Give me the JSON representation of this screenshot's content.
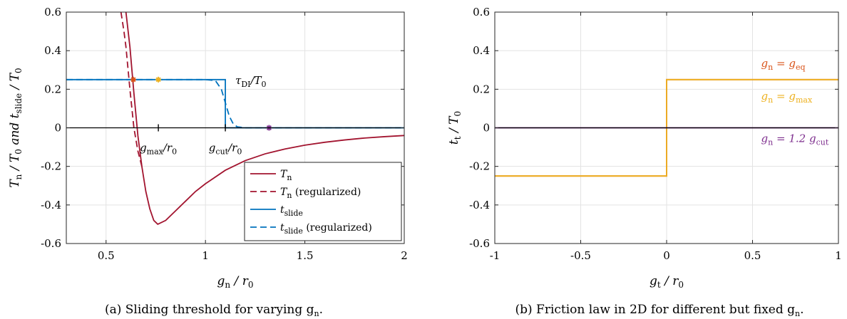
{
  "chart_data": [
    {
      "type": "line",
      "panel": "a",
      "caption": "(a) Sliding threshold for varying g",
      "caption_sub": "n",
      "caption_tail": ".",
      "xlabel": "g",
      "xlabel_sub": "n",
      "xlabel_tail": " / r",
      "xlabel_tail_sub": "0",
      "ylabel_parts": [
        "T",
        "n",
        " / T",
        "0",
        "   and   t",
        "slide",
        " / T",
        "0"
      ],
      "xlim": [
        0.3,
        2
      ],
      "ylim": [
        -0.6,
        0.6
      ],
      "xticks": [
        "0.5",
        "1",
        "1.5",
        "2"
      ],
      "xtick_values": [
        0.5,
        1,
        1.5,
        2
      ],
      "yticks": [
        "-0.6",
        "-0.4",
        "-0.2",
        "0",
        "0.2",
        "0.4",
        "0.6"
      ],
      "ytick_values": [
        -0.6,
        -0.4,
        -0.2,
        0,
        0.2,
        0.4,
        0.6
      ],
      "grid": true,
      "legend_position": "bottom-right",
      "colors": {
        "Tn": "#a2142f",
        "tslide": "#0072bd",
        "orange": "#d95319",
        "yellow": "#edb120",
        "purple": "#7e2f8e"
      },
      "series": [
        {
          "name": "T",
          "name_sub": "n",
          "style": "solid",
          "color": "#a2142f",
          "x": [
            0.6,
            0.62,
            0.64,
            0.66,
            0.68,
            0.7,
            0.72,
            0.74,
            0.76,
            0.8,
            0.85,
            0.9,
            0.95,
            1.0,
            1.1,
            1.2,
            1.3,
            1.4,
            1.5,
            1.6,
            1.7,
            1.8,
            1.9,
            2.0
          ],
          "y": [
            0.6,
            0.42,
            0.18,
            -0.04,
            -0.2,
            -0.33,
            -0.42,
            -0.48,
            -0.5,
            -0.48,
            -0.43,
            -0.38,
            -0.33,
            -0.29,
            -0.22,
            -0.17,
            -0.135,
            -0.11,
            -0.09,
            -0.075,
            -0.063,
            -0.053,
            -0.046,
            -0.04
          ]
        },
        {
          "name": "T",
          "name_sub": "n",
          "name_tail": "    (regularized)",
          "style": "dashed",
          "color": "#a2142f",
          "x": [
            0.575,
            0.59,
            0.6,
            0.62,
            0.64,
            0.66,
            0.68
          ],
          "y": [
            0.6,
            0.5,
            0.42,
            0.2,
            0.0,
            -0.12,
            -0.2
          ]
        },
        {
          "name": "t",
          "name_sub": "slide",
          "style": "solid",
          "color": "#0072bd",
          "x": [
            0.3,
            1.1,
            1.1,
            2.0
          ],
          "y": [
            0.25,
            0.25,
            0,
            0
          ]
        },
        {
          "name": "t",
          "name_sub": "slide",
          "name_tail": " (regularized)",
          "style": "dashed",
          "color": "#0072bd",
          "x": [
            0.3,
            1.0,
            1.05,
            1.08,
            1.1,
            1.12,
            1.14,
            1.16,
            1.2,
            2.0
          ],
          "y": [
            0.25,
            0.25,
            0.245,
            0.2,
            0.13,
            0.06,
            0.02,
            0.005,
            0,
            0
          ]
        }
      ],
      "markers": [
        {
          "x": 0.637,
          "y": 0.25,
          "color": "#d95319"
        },
        {
          "x": 0.763,
          "y": 0.25,
          "color": "#edb120"
        },
        {
          "x": 1.32,
          "y": 0,
          "color": "#7e2f8e"
        }
      ],
      "xaxis_markers": [
        {
          "x": 0.763,
          "label": "g",
          "label_sub": "max",
          "label_tail": "/r",
          "label_tail_sub": "0"
        },
        {
          "x": 1.1,
          "label": "g",
          "label_sub": "cut",
          "label_tail": "/r",
          "label_tail_sub": "0"
        }
      ],
      "annotation": {
        "x": 1.15,
        "y": 0.25,
        "text": "τ",
        "sub": "DI",
        "tail": "/T",
        "tail_sub": "0"
      }
    },
    {
      "type": "line",
      "panel": "b",
      "caption": "(b) Friction law in 2D for different but fixed g",
      "caption_sub": "n",
      "caption_tail": ".",
      "xlabel": "g",
      "xlabel_sub": "t",
      "xlabel_tail": " / r",
      "xlabel_tail_sub": "0",
      "ylabel": "t",
      "ylabel_sub": "t",
      "ylabel_tail": " / T",
      "ylabel_tail_sub": "0",
      "xlim": [
        -1,
        1
      ],
      "ylim": [
        -0.6,
        0.6
      ],
      "xticks": [
        "-1",
        "-0.5",
        "0",
        "0.5",
        "1"
      ],
      "xtick_values": [
        -1,
        -0.5,
        0,
        0.5,
        1
      ],
      "yticks": [
        "-0.6",
        "-0.4",
        "-0.2",
        "0",
        "0.2",
        "0.4",
        "0.6"
      ],
      "ytick_values": [
        -0.6,
        -0.4,
        -0.2,
        0,
        0.2,
        0.4,
        0.6
      ],
      "grid": true,
      "series": [
        {
          "name": "g",
          "name_sub": "n",
          "name_tail": " = g",
          "name_tail_sub": "eq",
          "color": "#d95319",
          "x": [
            -1,
            0,
            0,
            1
          ],
          "y": [
            -0.25,
            -0.25,
            0.25,
            0.25
          ]
        },
        {
          "name": "g",
          "name_sub": "n",
          "name_tail": " = g",
          "name_tail_sub": "max",
          "color": "#edb120",
          "x": [
            -1,
            0,
            0,
            1
          ],
          "y": [
            -0.25,
            -0.25,
            0.25,
            0.25
          ]
        },
        {
          "name": "g",
          "name_sub": "n",
          "name_tail": " = 1.2 g",
          "name_tail_sub": "cut",
          "color": "#7e2f8e",
          "x": [
            -1,
            1
          ],
          "y": [
            0,
            0
          ]
        }
      ],
      "series_labels": [
        {
          "series": 0,
          "x": 0.55,
          "y": 0.335
        },
        {
          "series": 1,
          "x": 0.55,
          "y": 0.165
        },
        {
          "series": 2,
          "x": 0.55,
          "y": -0.055
        }
      ]
    }
  ]
}
